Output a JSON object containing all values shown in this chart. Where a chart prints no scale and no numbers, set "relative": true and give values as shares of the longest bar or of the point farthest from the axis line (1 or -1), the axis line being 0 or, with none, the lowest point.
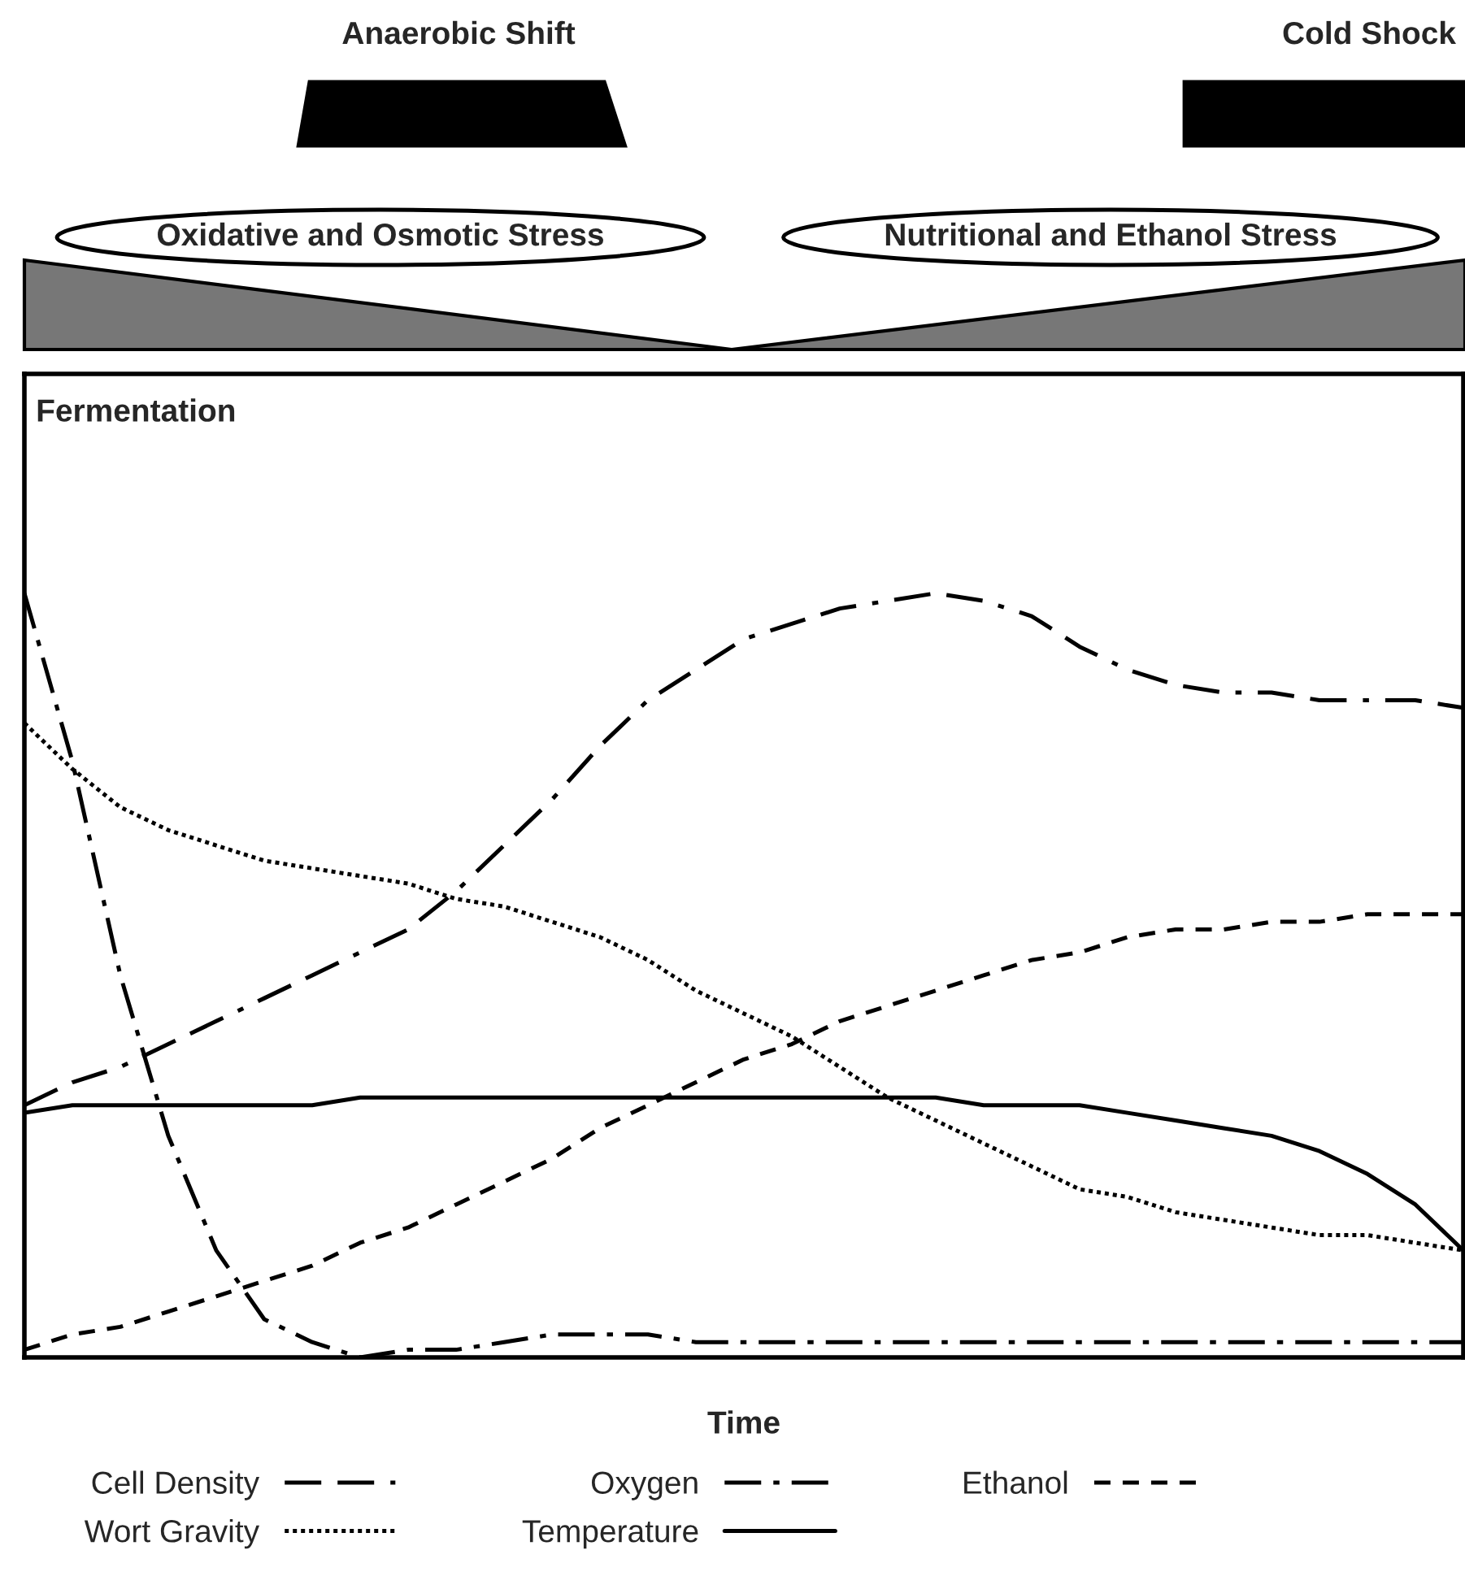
{
  "chart_data": {
    "type": "line",
    "title": "Fermentation",
    "xlabel": "Time",
    "relative": true,
    "legend": "bottom",
    "categories": [
      null,
      null,
      null,
      null,
      null,
      null,
      null,
      null,
      null,
      null,
      null,
      null,
      null,
      null,
      null,
      null,
      null,
      null,
      null,
      null,
      null,
      null,
      null,
      null,
      null,
      null,
      null,
      null,
      null,
      null,
      null
    ],
    "series": [
      {
        "name": "Cell Density",
        "color": "#000000",
        "line_style": "longdashdot",
        "values": [
          0.33,
          0.36,
          0.38,
          0.41,
          0.44,
          0.47,
          0.5,
          0.53,
          0.56,
          0.61,
          0.67,
          0.73,
          0.8,
          0.86,
          0.9,
          0.94,
          0.96,
          0.98,
          0.99,
          1.0,
          0.99,
          0.97,
          0.93,
          0.9,
          0.88,
          0.87,
          0.87,
          0.86,
          0.86,
          0.86,
          0.85
        ]
      },
      {
        "name": "Wort Gravity",
        "color": "#000000",
        "line_style": "dotted",
        "values": [
          0.83,
          0.77,
          0.72,
          0.69,
          0.67,
          0.65,
          0.64,
          0.63,
          0.62,
          0.6,
          0.59,
          0.57,
          0.55,
          0.52,
          0.48,
          0.45,
          0.42,
          0.38,
          0.34,
          0.31,
          0.28,
          0.25,
          0.22,
          0.21,
          0.19,
          0.18,
          0.17,
          0.16,
          0.16,
          0.15,
          0.14
        ]
      },
      {
        "name": "Oxygen",
        "color": "#000000",
        "line_style": "dashdot",
        "values": [
          1.0,
          0.78,
          0.5,
          0.29,
          0.14,
          0.05,
          0.02,
          0.0,
          0.01,
          0.01,
          0.02,
          0.03,
          0.03,
          0.03,
          0.02,
          0.02,
          0.02,
          0.02,
          0.02,
          0.02,
          0.02,
          0.02,
          0.02,
          0.02,
          0.02,
          0.02,
          0.02,
          0.02,
          0.02,
          0.02,
          0.02
        ]
      },
      {
        "name": "Temperature",
        "color": "#000000",
        "line_style": "solid",
        "values": [
          0.32,
          0.33,
          0.33,
          0.33,
          0.33,
          0.33,
          0.33,
          0.34,
          0.34,
          0.34,
          0.34,
          0.34,
          0.34,
          0.34,
          0.34,
          0.34,
          0.34,
          0.34,
          0.34,
          0.34,
          0.33,
          0.33,
          0.33,
          0.32,
          0.31,
          0.3,
          0.29,
          0.27,
          0.24,
          0.2,
          0.14
        ]
      },
      {
        "name": "Ethanol",
        "color": "#000000",
        "line_style": "dashed",
        "values": [
          0.01,
          0.03,
          0.04,
          0.06,
          0.08,
          0.1,
          0.12,
          0.15,
          0.17,
          0.2,
          0.23,
          0.26,
          0.3,
          0.33,
          0.36,
          0.39,
          0.41,
          0.44,
          0.46,
          0.48,
          0.5,
          0.52,
          0.53,
          0.55,
          0.56,
          0.56,
          0.57,
          0.57,
          0.58,
          0.58,
          0.58
        ]
      }
    ],
    "annotations": [
      "Anaerobic Shift",
      "Cold Shock",
      "Oxidative and Osmotic Stress",
      "Nutritional and Ethanol Stress"
    ]
  }
}
